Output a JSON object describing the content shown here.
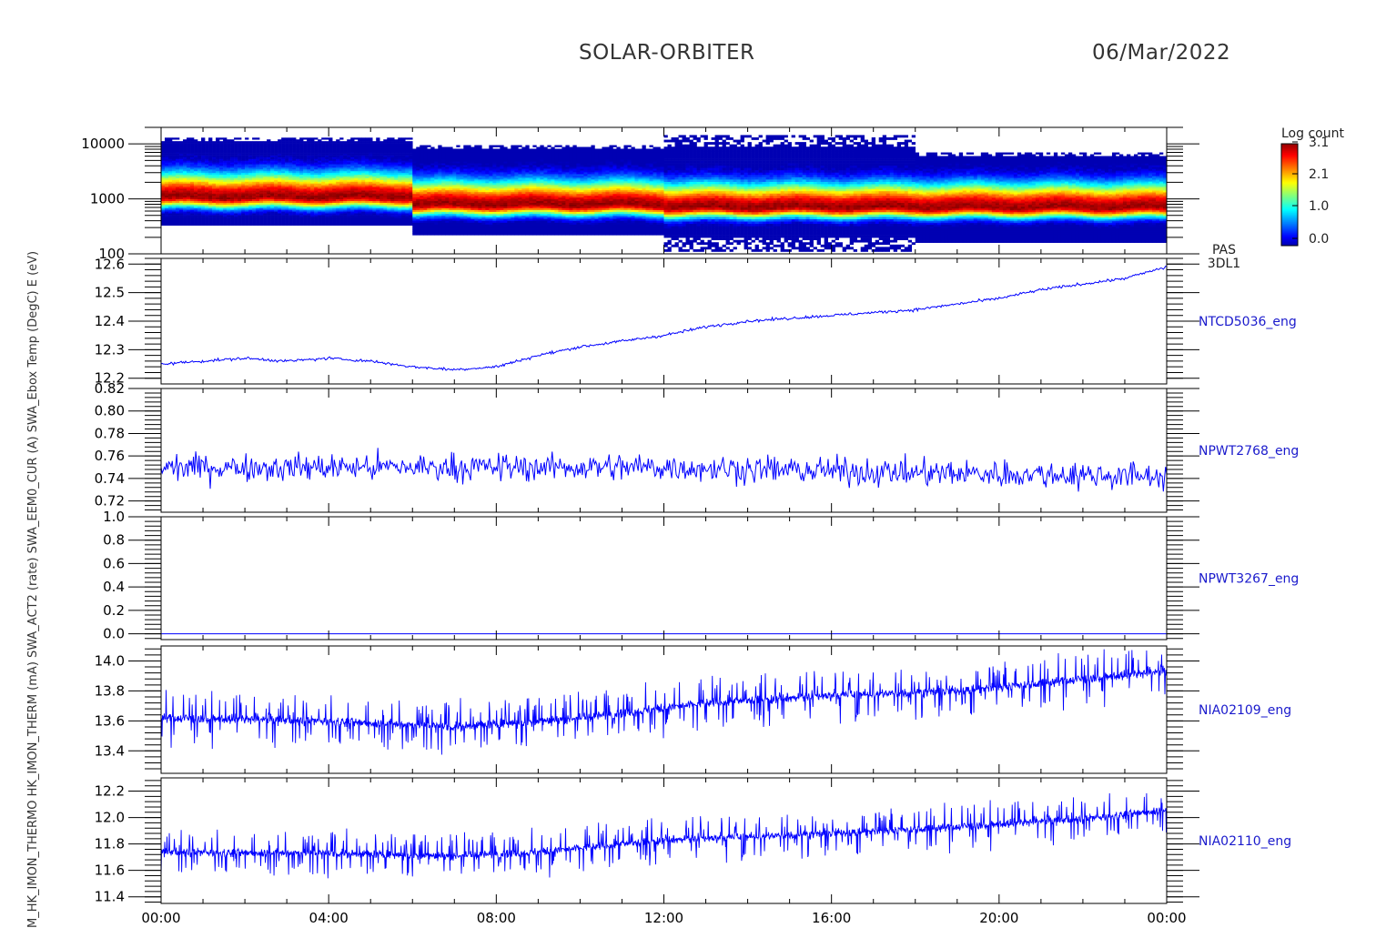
{
  "header": {
    "mission": "SOLAR-ORBITER",
    "date": "06/Mar/2022"
  },
  "colors": {
    "trace": "#0000ff",
    "label": "#1a1acc",
    "frame": "#000000"
  },
  "colorbar": {
    "title": "Log count",
    "ticks": [
      "3.1",
      "2.1",
      "1.0",
      "0.0"
    ],
    "range": [
      0.0,
      3.1
    ]
  },
  "time_axis": {
    "ticks": [
      "00:00",
      "04:00",
      "08:00",
      "12:00",
      "16:00",
      "20:00",
      "00:00"
    ],
    "range_hours": [
      0,
      24
    ]
  },
  "chart_data": [
    {
      "type": "heatmap",
      "name_lines": [
        "PAS",
        "3DL1"
      ],
      "ylabel": "E (eV)",
      "y_scale": "log",
      "ylim": [
        100,
        20000
      ],
      "yticks": [
        "10000",
        "1000",
        "100"
      ],
      "segments": [
        {
          "t0": 0,
          "t1": 6,
          "emin": 330,
          "emax": 13000,
          "epeak": 1100
        },
        {
          "t0": 6,
          "t1": 12,
          "emin": 220,
          "emax": 9500,
          "epeak": 800
        },
        {
          "t0": 12,
          "t1": 18,
          "emin": 110,
          "emax": 14500,
          "epeak": 720
        },
        {
          "t0": 18,
          "t1": 24,
          "emin": 160,
          "emax": 7000,
          "epeak": 720
        }
      ]
    },
    {
      "type": "line",
      "name": "NTCD5036_eng",
      "ylabel": "SWA_Ebox Temp (DegC)",
      "ylim": [
        12.18,
        12.62
      ],
      "yticks": [
        "12.2",
        "12.3",
        "12.4",
        "12.5",
        "12.6"
      ],
      "x": [
        0,
        1,
        2,
        3,
        4,
        5,
        6,
        7,
        8,
        9,
        10,
        11,
        12,
        13,
        14,
        15,
        16,
        17,
        18,
        19,
        20,
        21,
        22,
        23,
        24
      ],
      "values": [
        12.25,
        12.26,
        12.27,
        12.26,
        12.27,
        12.26,
        12.24,
        12.23,
        12.24,
        12.28,
        12.31,
        12.33,
        12.35,
        12.38,
        12.4,
        12.41,
        12.42,
        12.43,
        12.44,
        12.46,
        12.48,
        12.51,
        12.53,
        12.55,
        12.59
      ],
      "noise": 0.005
    },
    {
      "type": "line",
      "name": "NPWT2768_eng",
      "ylabel": "SWA_EEM0_CUR (A)",
      "ylim": [
        0.71,
        0.82
      ],
      "yticks": [
        "0.72",
        "0.74",
        "0.76",
        "0.78",
        "0.80",
        "0.82"
      ],
      "x": [
        0,
        12,
        18,
        24
      ],
      "values": [
        0.75,
        0.75,
        0.745,
        0.742
      ],
      "noise": 0.012
    },
    {
      "type": "line",
      "name": "NPWT3267_eng",
      "ylabel": "SWA_ACT2 (rate)",
      "ylim": [
        -0.05,
        1.0
      ],
      "yticks": [
        "0.0",
        "0.2",
        "0.4",
        "0.6",
        "0.8",
        "1.0"
      ],
      "x": [
        0,
        24
      ],
      "values": [
        0.0,
        0.0
      ],
      "noise": 0
    },
    {
      "type": "line",
      "name": "NIA02109_eng",
      "ylabel": "HK_IMON_THERM (mA)",
      "ylim": [
        13.25,
        14.1
      ],
      "yticks": [
        "13.4",
        "13.6",
        "13.8",
        "14.0"
      ],
      "x": [
        0,
        4,
        7,
        10,
        13,
        16,
        19,
        22,
        24
      ],
      "values": [
        13.62,
        13.6,
        13.56,
        13.62,
        13.72,
        13.77,
        13.8,
        13.88,
        13.93
      ],
      "noise": 0.05
    },
    {
      "type": "line",
      "name": "NIA02110_eng",
      "ylabel": "M_HK_IMON_THERMO",
      "ylim": [
        11.35,
        12.3
      ],
      "yticks": [
        "11.4",
        "11.6",
        "11.8",
        "12.0",
        "12.2"
      ],
      "x": [
        0,
        4,
        7,
        9,
        12,
        16,
        19,
        22,
        24
      ],
      "values": [
        11.74,
        11.73,
        11.71,
        11.74,
        11.83,
        11.88,
        11.93,
        11.99,
        12.06
      ],
      "noise": 0.05
    }
  ],
  "ylabel_stack": "M_HK_IMON_THERMO HK_IMON_THERM (mA) SWA_ACT2 (rate) SWA_EEM0_CUR (A) SWA_Ebox Temp (DegC) E (eV)"
}
